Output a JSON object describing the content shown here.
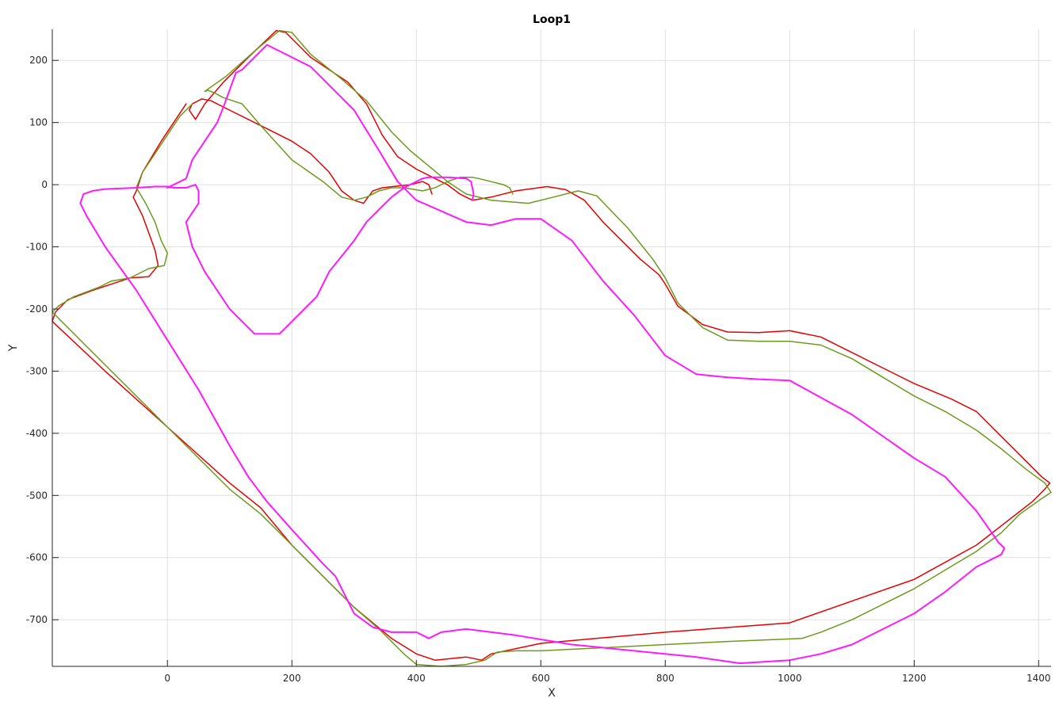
{
  "chart_data": {
    "type": "line",
    "title": "Loop1",
    "xlabel": "X",
    "ylabel": "Y",
    "xlim": [
      -185,
      1420
    ],
    "ylim": [
      -775,
      250
    ],
    "xticks": [
      0,
      200,
      400,
      600,
      800,
      1000,
      1200,
      1400
    ],
    "yticks": [
      200,
      100,
      0,
      -100,
      -200,
      -300,
      -400,
      -500,
      -600,
      -700
    ],
    "grid": true,
    "legend": "none",
    "series": [
      {
        "color": "#e60000",
        "x": [
          425,
          420,
          410,
          390,
          345,
          330,
          315,
          300,
          280,
          260,
          230,
          200,
          150,
          100,
          70,
          55,
          40,
          35,
          45,
          60,
          90,
          130,
          175,
          190,
          230,
          290,
          320,
          345,
          370,
          400,
          430,
          450,
          470,
          490,
          520,
          560,
          610,
          640,
          670,
          700,
          760,
          790,
          800,
          820,
          860,
          900,
          950,
          1000,
          1050,
          1100,
          1150,
          1200,
          1260,
          1300,
          1340,
          1380,
          1405,
          1418,
          1410,
          1390,
          1300,
          1200,
          1100,
          1000,
          800,
          600,
          520,
          505,
          480,
          430,
          400,
          360,
          300,
          200,
          150,
          100,
          0,
          -100,
          -185,
          -180,
          -160,
          -120,
          -90,
          -60,
          -30,
          -15,
          -20,
          -40,
          -55,
          -50,
          -40,
          -10,
          10,
          30
        ],
        "y": [
          -15,
          0,
          5,
          0,
          -5,
          -10,
          -30,
          -25,
          -10,
          20,
          50,
          70,
          95,
          120,
          135,
          138,
          130,
          120,
          105,
          130,
          165,
          205,
          248,
          245,
          205,
          165,
          130,
          80,
          45,
          25,
          10,
          0,
          -15,
          -25,
          -20,
          -10,
          -3,
          -8,
          -25,
          -60,
          -120,
          -145,
          -160,
          -195,
          -225,
          -237,
          -238,
          -235,
          -245,
          -270,
          -295,
          -320,
          -345,
          -365,
          -405,
          -445,
          -470,
          -480,
          -490,
          -510,
          -580,
          -635,
          -670,
          -705,
          -720,
          -738,
          -755,
          -765,
          -760,
          -765,
          -755,
          -730,
          -680,
          -580,
          -520,
          -480,
          -390,
          -300,
          -220,
          -205,
          -185,
          -170,
          -160,
          -150,
          -148,
          -130,
          -105,
          -50,
          -20,
          -10,
          20,
          70,
          100,
          130
        ]
      },
      {
        "color": "#6b9a1c",
        "x": [
          555,
          550,
          540,
          520,
          500,
          490,
          470,
          450,
          430,
          410,
          380,
          360,
          340,
          320,
          300,
          280,
          250,
          200,
          150,
          120,
          90,
          75,
          65,
          60,
          95,
          140,
          180,
          200,
          230,
          280,
          320,
          340,
          360,
          390,
          420,
          450,
          480,
          520,
          580,
          620,
          660,
          690,
          740,
          780,
          800,
          820,
          860,
          900,
          950,
          1000,
          1050,
          1100,
          1150,
          1200,
          1250,
          1300,
          1340,
          1380,
          1410,
          1420,
          1405,
          1370,
          1340,
          1300,
          1250,
          1200,
          1150,
          1100,
          1050,
          1020,
          900,
          800,
          700,
          600,
          560,
          530,
          510,
          480,
          440,
          400,
          380,
          360,
          340,
          300,
          200,
          150,
          100,
          0,
          -100,
          -185,
          -175,
          -150,
          -110,
          -90,
          -60,
          -30,
          -5,
          0,
          -10,
          -20,
          -35,
          -50,
          -40,
          -20,
          0,
          20,
          40
        ],
        "y": [
          -15,
          -5,
          0,
          5,
          10,
          12,
          12,
          5,
          -5,
          -10,
          -5,
          -5,
          -10,
          -20,
          -25,
          -20,
          5,
          40,
          95,
          130,
          140,
          148,
          152,
          150,
          175,
          215,
          248,
          245,
          210,
          170,
          135,
          110,
          85,
          55,
          30,
          5,
          -15,
          -25,
          -30,
          -20,
          -10,
          -18,
          -70,
          -120,
          -150,
          -190,
          -230,
          -250,
          -252,
          -252,
          -258,
          -280,
          -310,
          -340,
          -365,
          -395,
          -425,
          -458,
          -480,
          -495,
          -505,
          -530,
          -560,
          -590,
          -620,
          -650,
          -675,
          -700,
          -720,
          -730,
          -735,
          -740,
          -745,
          -750,
          -750,
          -752,
          -765,
          -772,
          -775,
          -772,
          -755,
          -735,
          -715,
          -680,
          -580,
          -530,
          -490,
          -390,
          -290,
          -205,
          -195,
          -180,
          -165,
          -155,
          -150,
          -135,
          -130,
          -110,
          -90,
          -60,
          -30,
          -5,
          20,
          50,
          80,
          110,
          130
        ]
      },
      {
        "color": "#ff19ff",
        "x": [
          490,
          492,
          488,
          480,
          450,
          420,
          410,
          400,
          380,
          360,
          340,
          320,
          300,
          260,
          240,
          180,
          140,
          100,
          60,
          40,
          30,
          50,
          50,
          45,
          30,
          10,
          0,
          -20,
          -50,
          -100,
          -120,
          -135,
          -140,
          -130,
          -100,
          -50,
          0,
          50,
          100,
          130,
          160,
          200,
          250,
          270,
          300,
          330,
          360,
          400,
          420,
          440,
          480,
          560,
          650,
          750,
          850,
          920,
          1000,
          1050,
          1100,
          1150,
          1200,
          1250,
          1300,
          1320,
          1340,
          1345,
          1335,
          1300,
          1250,
          1200,
          1100,
          1000,
          950,
          900,
          850,
          800,
          750,
          700,
          650,
          600,
          560,
          520,
          480,
          400,
          390,
          370,
          340,
          300,
          260,
          230,
          190,
          160,
          120,
          110,
          90,
          80,
          60,
          40,
          30,
          10,
          0
        ],
        "y": [
          -25,
          -15,
          5,
          10,
          12,
          12,
          10,
          5,
          -5,
          -20,
          -40,
          -60,
          -90,
          -140,
          -180,
          -240,
          -240,
          -200,
          -140,
          -100,
          -60,
          -30,
          -10,
          0,
          -5,
          -5,
          -3,
          -3,
          -5,
          -7,
          -10,
          -15,
          -30,
          -50,
          -100,
          -170,
          -250,
          -330,
          -420,
          -470,
          -510,
          -555,
          -610,
          -630,
          -690,
          -712,
          -720,
          -720,
          -730,
          -720,
          -715,
          -725,
          -740,
          -750,
          -760,
          -770,
          -765,
          -755,
          -740,
          -715,
          -690,
          -655,
          -615,
          -605,
          -595,
          -585,
          -575,
          -525,
          -470,
          -440,
          -370,
          -315,
          -313,
          -310,
          -305,
          -275,
          -210,
          -155,
          -90,
          -55,
          -55,
          -65,
          -60,
          -25,
          -15,
          5,
          55,
          120,
          160,
          190,
          210,
          225,
          185,
          180,
          125,
          100,
          70,
          40,
          10,
          0,
          -5
        ]
      }
    ]
  }
}
